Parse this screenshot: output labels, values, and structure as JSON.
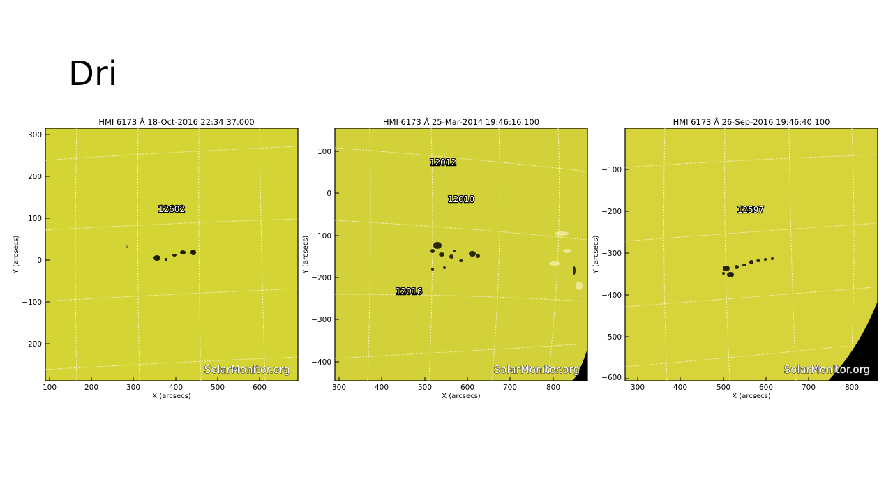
{
  "slide": {
    "title": "Dri"
  },
  "panels": [
    {
      "title": "HMI 6173 Å 18-Oct-2016 22:34:37.000",
      "xlabel": "X (arcsecs)",
      "ylabel": "Y (arcsecs)",
      "xlim": [
        90,
        690
      ],
      "ylim": [
        -290,
        315
      ],
      "xticks": [
        "100",
        "200",
        "300",
        "400",
        "500",
        "600"
      ],
      "xtick_values": [
        100,
        200,
        300,
        400,
        500,
        600
      ],
      "yticks": [
        "300",
        "200",
        "100",
        "0",
        "−100",
        "−200"
      ],
      "ytick_values": [
        300,
        200,
        100,
        0,
        -100,
        -200
      ],
      "regions": [
        {
          "label": "12602",
          "x": 395,
          "y": 122
        }
      ],
      "watermark": "SolarMonitor.org",
      "limb": false
    },
    {
      "title": "HMI 6173 Å 25-Mar-2014 19:46:16.100",
      "xlabel": "X (arcsecs)",
      "ylabel": "Y (arcsecs)",
      "xlim": [
        290,
        880
      ],
      "ylim": [
        -445,
        155
      ],
      "xticks": [
        "300",
        "400",
        "500",
        "600",
        "700",
        "800"
      ],
      "xtick_values": [
        300,
        400,
        500,
        600,
        700,
        800
      ],
      "yticks": [
        "100",
        "0",
        "−100",
        "−200",
        "−300",
        "−400"
      ],
      "ytick_values": [
        100,
        0,
        -100,
        -200,
        -300,
        -400
      ],
      "regions": [
        {
          "label": "12012",
          "x": 540,
          "y": 75
        },
        {
          "label": "12010",
          "x": 585,
          "y": -13
        },
        {
          "label": "12016",
          "x": 455,
          "y": -235
        }
      ],
      "watermark": "SolarMonitor.org",
      "limb": true
    },
    {
      "title": "HMI 6173 Å 26-Sep-2016 19:46:40.100",
      "xlabel": "X (arcsecs)",
      "ylabel": "Y (arcsecs)",
      "xlim": [
        270,
        860
      ],
      "ylim": [
        -605,
        -10
      ],
      "xticks": [
        "300",
        "400",
        "500",
        "600",
        "700",
        "800"
      ],
      "xtick_values": [
        300,
        400,
        500,
        600,
        700,
        800
      ],
      "yticks": [
        "−100",
        "−200",
        "−300",
        "−400",
        "−500",
        "−600"
      ],
      "ytick_values": [
        -100,
        -200,
        -300,
        -400,
        -500,
        -600
      ],
      "regions": [
        {
          "label": "12597",
          "x": 570,
          "y": -195
        }
      ],
      "watermark": "SolarMonitor.org",
      "limb": true
    }
  ]
}
